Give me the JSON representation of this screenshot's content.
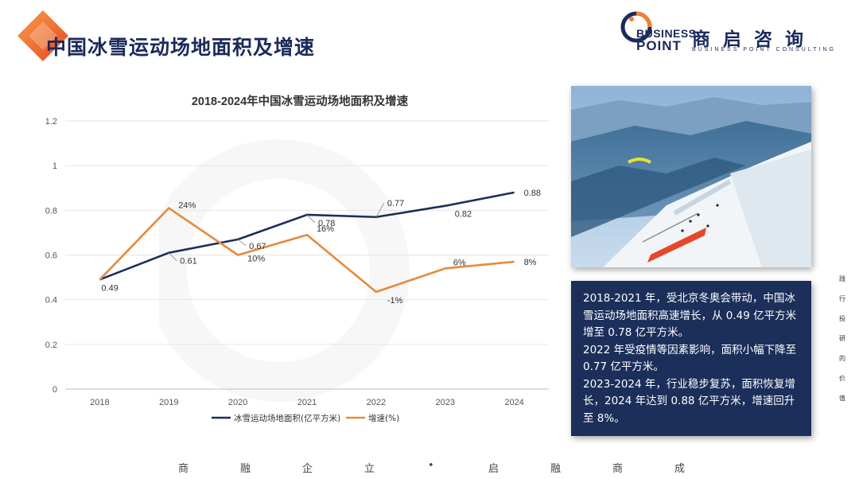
{
  "header": {
    "title": "中国冰雪运动场地面积及增速"
  },
  "logo": {
    "en_line1": "BUSINESS",
    "en_line2": "POINT",
    "cn_name": "商启咨询",
    "en_full": "BUSINESS POINT CONSULTING"
  },
  "colors": {
    "accent_orange": "#f0822e",
    "accent_red": "#e8451f",
    "navy": "#1b2f5a",
    "series_area": "#1b2f5a",
    "series_growth": "#e8893a"
  },
  "chart_data": {
    "type": "line",
    "title": "2018-2024年中国冰雪运动场地面积及增速",
    "categories": [
      "2018",
      "2019",
      "2020",
      "2021",
      "2022",
      "2023",
      "2024"
    ],
    "ylim": [
      0,
      1.2
    ],
    "yticks": [
      "0",
      "0.2",
      "0.4",
      "0.6",
      "0.8",
      "1",
      "1.2"
    ],
    "grid": true,
    "legend_position": "bottom",
    "series": [
      {
        "name": "冰雪运动场地面积(亿平方米)",
        "values": [
          0.49,
          0.61,
          0.67,
          0.78,
          0.77,
          0.82,
          0.88
        ],
        "labels": [
          "0.49",
          "0.61",
          "0.67",
          "0.78",
          "0.77",
          "0.82",
          "0.88"
        ]
      },
      {
        "name": "增速(%)",
        "values": [
          null,
          24,
          10,
          16,
          -1,
          6,
          8
        ],
        "labels": [
          "",
          "24%",
          "10%",
          "16%",
          "-1%",
          "6%",
          "8%"
        ]
      }
    ]
  },
  "photo": {
    "subject": "ski-slope-paraglider-photo"
  },
  "summary": {
    "p1": "2018-2021 年，受北京冬奥会带动，中国冰雪运动场地面积高速增长，从 0.49 亿平方米增至 0.78 亿平方米。",
    "p2": "2022 年受疫情等因素影响，面积小幅下降至 0.77 亿平方米。",
    "p3": "2023-2024 年，行业稳步复苏，面积恢复增长，2024 年达到 0.88 亿平方米，增速回升至 8%。"
  },
  "side_slogan": [
    "践",
    "行",
    "投",
    "研",
    "的",
    "价",
    "值"
  ],
  "bottom_slogan": [
    "商",
    "融",
    "企",
    "立",
    "•",
    "启",
    "融",
    "商",
    "成"
  ]
}
